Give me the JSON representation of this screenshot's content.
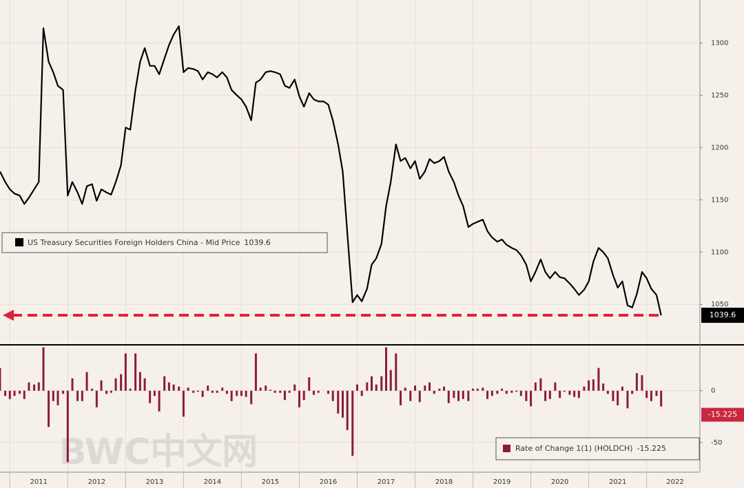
{
  "chart_data": [
    {
      "type": "line",
      "x": [
        2010.83,
        2010.92,
        2011.0,
        2011.08,
        2011.17,
        2011.25,
        2011.33,
        2011.42,
        2011.5,
        2011.58,
        2011.67,
        2011.75,
        2011.83,
        2011.92,
        2012.0,
        2012.08,
        2012.17,
        2012.25,
        2012.33,
        2012.42,
        2012.5,
        2012.58,
        2012.67,
        2012.75,
        2012.83,
        2012.92,
        2013.0,
        2013.08,
        2013.17,
        2013.25,
        2013.33,
        2013.42,
        2013.5,
        2013.58,
        2013.67,
        2013.75,
        2013.83,
        2013.92,
        2014.0,
        2014.08,
        2014.17,
        2014.25,
        2014.33,
        2014.42,
        2014.5,
        2014.58,
        2014.67,
        2014.75,
        2014.83,
        2014.92,
        2015.0,
        2015.08,
        2015.17,
        2015.25,
        2015.33,
        2015.42,
        2015.5,
        2015.58,
        2015.67,
        2015.75,
        2015.83,
        2015.92,
        2016.0,
        2016.08,
        2016.17,
        2016.25,
        2016.33,
        2016.42,
        2016.5,
        2016.58,
        2016.67,
        2016.75,
        2016.83,
        2016.92,
        2017.0,
        2017.08,
        2017.17,
        2017.25,
        2017.33,
        2017.42,
        2017.5,
        2017.58,
        2017.67,
        2017.75,
        2017.83,
        2017.92,
        2018.0,
        2018.08,
        2018.17,
        2018.25,
        2018.33,
        2018.42,
        2018.5,
        2018.58,
        2018.67,
        2018.75,
        2018.83,
        2018.92,
        2019.0,
        2019.08,
        2019.17,
        2019.25,
        2019.33,
        2019.42,
        2019.5,
        2019.58,
        2019.67,
        2019.75,
        2019.83,
        2019.92,
        2020.0,
        2020.08,
        2020.17,
        2020.25,
        2020.33,
        2020.42,
        2020.5,
        2020.58,
        2020.67,
        2020.75,
        2020.83,
        2020.92,
        2021.0,
        2021.08,
        2021.17,
        2021.25,
        2021.33,
        2021.42,
        2021.5,
        2021.58,
        2021.67,
        2021.75,
        2021.83,
        2021.92,
        2022.0,
        2022.08,
        2022.17,
        2022.25
      ],
      "series": [
        {
          "name": "US Treasury Securities Foreign Holders China - Mid Price",
          "color": "#000000",
          "values": [
            1177,
            1167,
            1160,
            1156,
            1154,
            1146,
            1152,
            1160,
            1167,
            1314,
            1282,
            1272,
            1259,
            1255,
            1154,
            1167,
            1157,
            1146,
            1163,
            1165,
            1149,
            1160,
            1157,
            1155,
            1167,
            1183,
            1219,
            1217,
            1255,
            1282,
            1295,
            1278,
            1278,
            1270,
            1285,
            1298,
            1308,
            1316,
            1272,
            1276,
            1275,
            1273,
            1265,
            1272,
            1270,
            1267,
            1272,
            1267,
            1255,
            1250,
            1246,
            1239,
            1226,
            1262,
            1265,
            1272,
            1273,
            1272,
            1270,
            1259,
            1257,
            1265,
            1249,
            1239,
            1252,
            1246,
            1244,
            1244,
            1241,
            1226,
            1203,
            1177,
            1118,
            1052,
            1059,
            1053,
            1065,
            1088,
            1094,
            1108,
            1144,
            1167,
            1203,
            1187,
            1190,
            1180,
            1187,
            1170,
            1177,
            1189,
            1185,
            1187,
            1191,
            1177,
            1167,
            1154,
            1144,
            1124,
            1127,
            1129,
            1131,
            1120,
            1114,
            1110,
            1112,
            1107,
            1104,
            1102,
            1097,
            1088,
            1072,
            1081,
            1093,
            1081,
            1075,
            1081,
            1076,
            1075,
            1070,
            1065,
            1059,
            1064,
            1072,
            1091,
            1104,
            1100,
            1094,
            1078,
            1066,
            1072,
            1049,
            1047,
            1060,
            1081,
            1075,
            1065,
            1059,
            1039.6
          ]
        }
      ],
      "xlim": [
        2010.83,
        2022.92
      ],
      "xticks": [
        2011,
        2012,
        2013,
        2014,
        2015,
        2016,
        2017,
        2018,
        2019,
        2020,
        2021,
        2022
      ],
      "ylim": [
        1012,
        1341
      ],
      "yticks": [
        1050,
        1100,
        1150,
        1200,
        1250,
        1300
      ],
      "grid": true
    },
    {
      "type": "bar",
      "x": [
        2010.83,
        2010.92,
        2011.0,
        2011.08,
        2011.17,
        2011.25,
        2011.33,
        2011.42,
        2011.5,
        2011.58,
        2011.67,
        2011.75,
        2011.83,
        2011.92,
        2012.0,
        2012.08,
        2012.17,
        2012.25,
        2012.33,
        2012.42,
        2012.5,
        2012.58,
        2012.67,
        2012.75,
        2012.83,
        2012.92,
        2013.0,
        2013.08,
        2013.17,
        2013.25,
        2013.33,
        2013.42,
        2013.5,
        2013.58,
        2013.67,
        2013.75,
        2013.83,
        2013.92,
        2014.0,
        2014.08,
        2014.17,
        2014.25,
        2014.33,
        2014.42,
        2014.5,
        2014.58,
        2014.67,
        2014.75,
        2014.83,
        2014.92,
        2015.0,
        2015.08,
        2015.17,
        2015.25,
        2015.33,
        2015.42,
        2015.5,
        2015.58,
        2015.67,
        2015.75,
        2015.83,
        2015.92,
        2016.0,
        2016.08,
        2016.17,
        2016.25,
        2016.33,
        2016.42,
        2016.5,
        2016.58,
        2016.67,
        2016.75,
        2016.83,
        2016.92,
        2017.0,
        2017.08,
        2017.17,
        2017.25,
        2017.33,
        2017.42,
        2017.5,
        2017.58,
        2017.67,
        2017.75,
        2017.83,
        2017.92,
        2018.0,
        2018.08,
        2018.17,
        2018.25,
        2018.33,
        2018.42,
        2018.5,
        2018.58,
        2018.67,
        2018.75,
        2018.83,
        2018.92,
        2019.0,
        2019.08,
        2019.17,
        2019.25,
        2019.33,
        2019.42,
        2019.5,
        2019.58,
        2019.67,
        2019.75,
        2019.83,
        2019.92,
        2020.0,
        2020.08,
        2020.17,
        2020.25,
        2020.33,
        2020.42,
        2020.5,
        2020.58,
        2020.67,
        2020.75,
        2020.83,
        2020.92,
        2021.0,
        2021.08,
        2021.17,
        2021.25,
        2021.33,
        2021.42,
        2021.5,
        2021.58,
        2021.67,
        2021.75,
        2021.83,
        2021.92,
        2022.0,
        2022.08,
        2022.17,
        2022.25
      ],
      "series": [
        {
          "name": "Rate of Change 1(1) (HOLDCH)",
          "color": "#8b1a3a",
          "values": [
            22,
            -5,
            -8,
            -5,
            -3,
            -8,
            8,
            6,
            8,
            42,
            -35,
            -10,
            -14,
            -3,
            -69,
            12,
            -10,
            -10,
            18,
            2,
            -16,
            10,
            -3,
            -2,
            12,
            16,
            36,
            2,
            36,
            18,
            12,
            -12,
            -5,
            -20,
            14,
            8,
            6,
            4,
            -25,
            3,
            -2,
            -1,
            -6,
            5,
            -2,
            -2,
            3,
            -3,
            -10,
            -5,
            -5,
            -6,
            -13,
            36,
            3,
            5,
            1,
            -2,
            -2,
            -9,
            -2,
            6,
            -16,
            -9,
            13,
            -4,
            -2,
            0,
            -3,
            -10,
            -22,
            -26,
            -38,
            -63,
            6,
            -5,
            8,
            14,
            6,
            14,
            42,
            20,
            36,
            -14,
            3,
            -10,
            5,
            -11,
            5,
            8,
            -3,
            2,
            4,
            -12,
            -7,
            -10,
            -8,
            -10,
            2,
            2,
            3,
            -8,
            -5,
            -3,
            2,
            -3,
            -2,
            -1,
            -5,
            -10,
            -15,
            8,
            12,
            -10,
            -8,
            8,
            -7,
            -1,
            -4,
            -6,
            -7,
            4,
            10,
            11,
            22,
            7,
            -3,
            -10,
            -14,
            4,
            -17,
            -3,
            17,
            15,
            -7,
            -10,
            -5,
            -15.225
          ]
        }
      ],
      "xlim": [
        2010.83,
        2022.92
      ],
      "xticks": [
        2011,
        2012,
        2013,
        2014,
        2015,
        2016,
        2017,
        2018,
        2019,
        2020,
        2021,
        2022
      ],
      "ylim": [
        -78,
        43
      ],
      "yticks": [
        -50,
        0
      ],
      "grid": true
    }
  ],
  "watermark": "BWC中文网"
}
